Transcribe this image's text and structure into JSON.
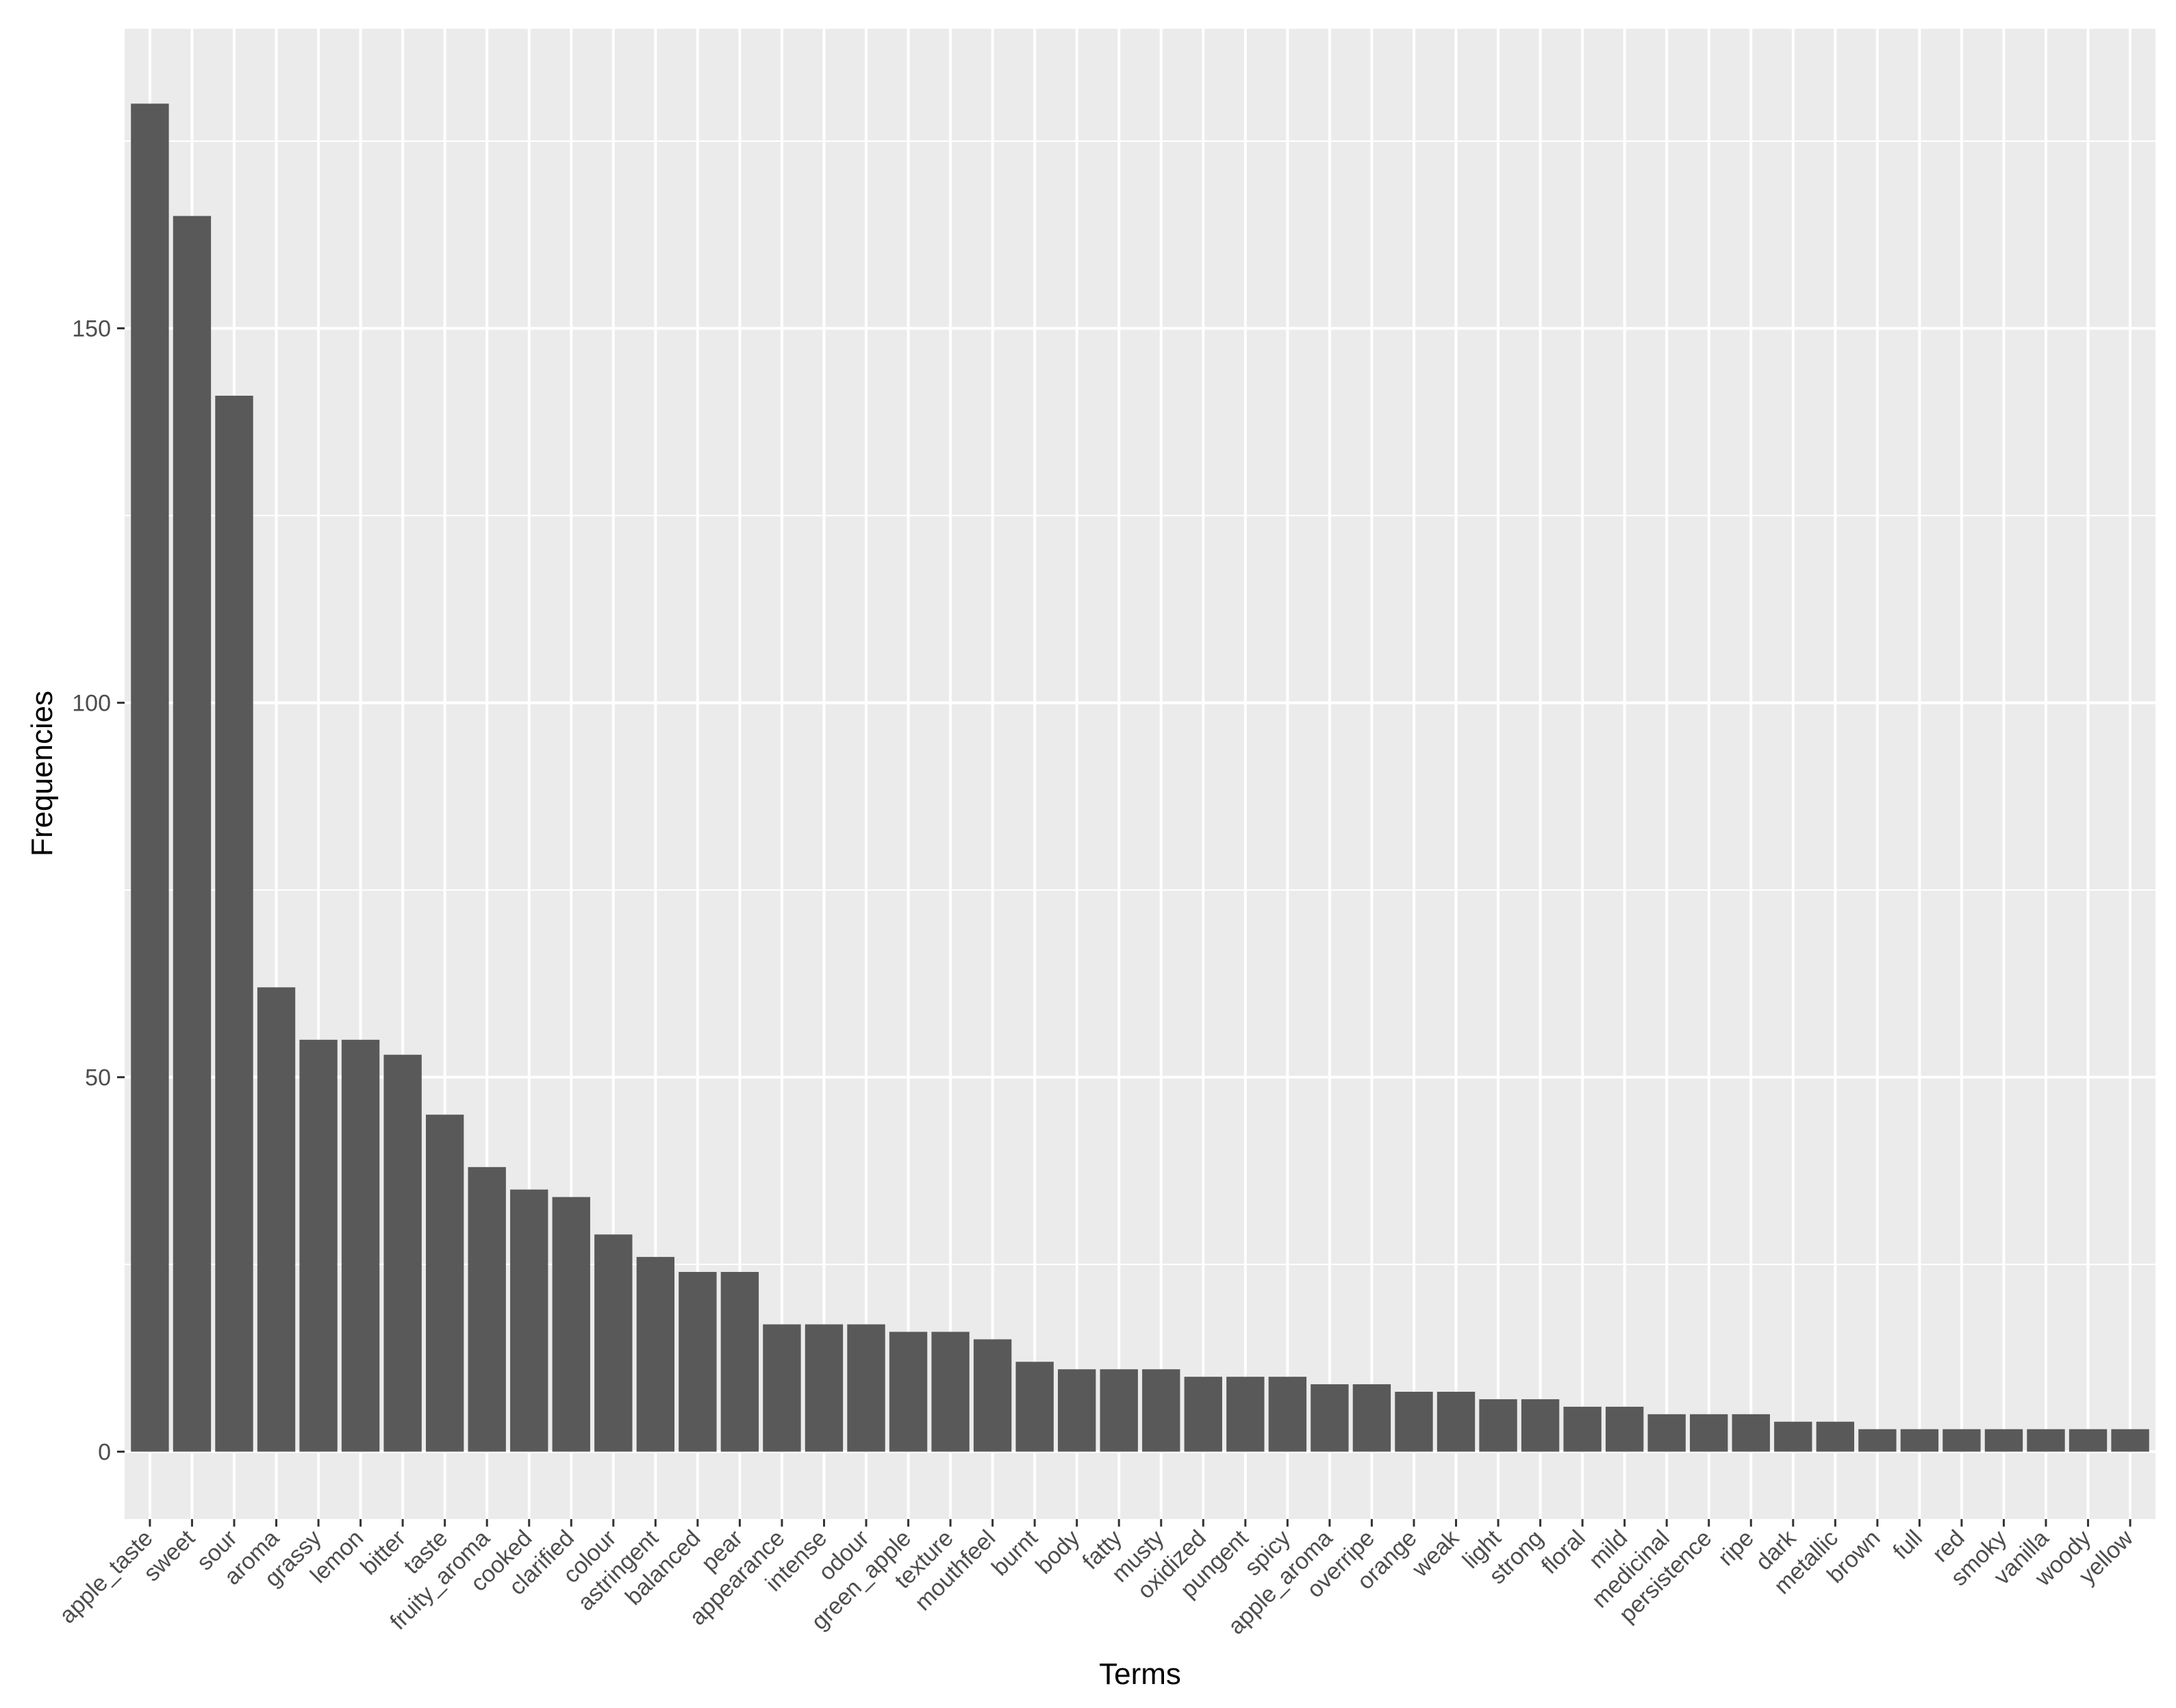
{
  "chart_data": {
    "type": "bar",
    "xlabel": "Terms",
    "ylabel": "Frequencies",
    "ylim": [
      -9,
      190
    ],
    "yticks": [
      0,
      50,
      100,
      150
    ],
    "grid": true,
    "legend": "none",
    "colors": {
      "bar": "#595959",
      "panel": "#ebebeb",
      "grid_major": "#ffffff",
      "tick_text": "#4d4d4d"
    },
    "categories": [
      "apple_taste",
      "sweet",
      "sour",
      "aroma",
      "grassy",
      "lemon",
      "bitter",
      "taste",
      "fruity_aroma",
      "cooked",
      "clarified",
      "colour",
      "astringent",
      "balanced",
      "pear",
      "appearance",
      "intense",
      "odour",
      "green_apple",
      "texture",
      "mouthfeel",
      "burnt",
      "body",
      "fatty",
      "musty",
      "oxidized",
      "pungent",
      "spicy",
      "apple_aroma",
      "overripe",
      "orange",
      "weak",
      "light",
      "strong",
      "floral",
      "mild",
      "medicinal",
      "persistence",
      "ripe",
      "dark",
      "metallic",
      "brown",
      "full",
      "red",
      "smoky",
      "vanilla",
      "woody",
      "yellow"
    ],
    "values": [
      180,
      165,
      141,
      62,
      55,
      55,
      53,
      45,
      38,
      35,
      34,
      29,
      26,
      24,
      24,
      17,
      17,
      17,
      16,
      16,
      15,
      12,
      11,
      11,
      11,
      10,
      10,
      10,
      9,
      9,
      8,
      8,
      7,
      7,
      6,
      6,
      5,
      5,
      5,
      4,
      4,
      3,
      3,
      3,
      3,
      3,
      3,
      3
    ]
  }
}
